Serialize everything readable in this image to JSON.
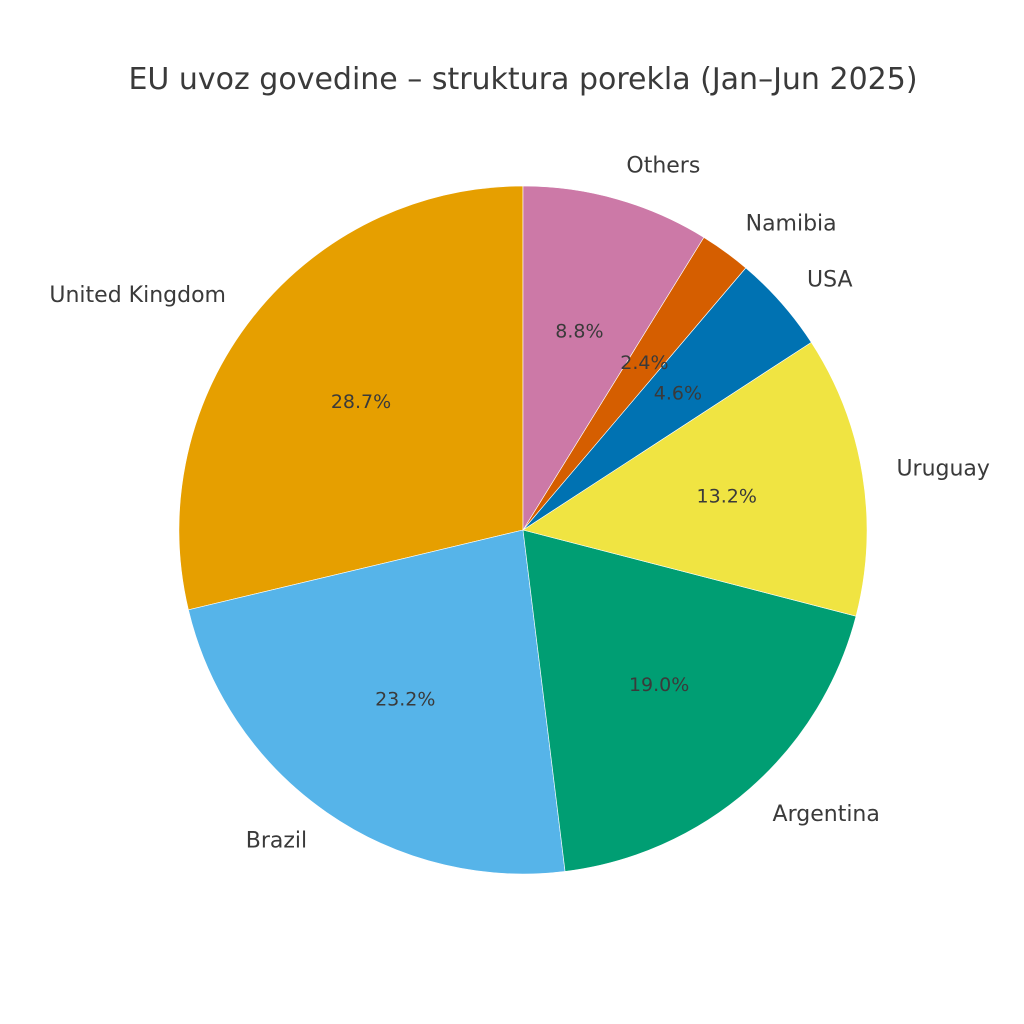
{
  "chart_data": {
    "type": "pie",
    "title": "EU uvoz govedine – struktura porekla (Jan–Jun 2025)",
    "start_angle_deg": 90,
    "direction": "counterclockwise",
    "slices": [
      {
        "label": "United Kingdom",
        "value": 28.7,
        "pct_label": "28.7%",
        "color": "#E69F00"
      },
      {
        "label": "Brazil",
        "value": 23.2,
        "pct_label": "23.2%",
        "color": "#56B4E9"
      },
      {
        "label": "Argentina",
        "value": 19.0,
        "pct_label": "19.0%",
        "color": "#009E73"
      },
      {
        "label": "Uruguay",
        "value": 13.2,
        "pct_label": "13.2%",
        "color": "#F0E442"
      },
      {
        "label": "USA",
        "value": 4.6,
        "pct_label": "4.6%",
        "color": "#0072B2"
      },
      {
        "label": "Namibia",
        "value": 2.4,
        "pct_label": "2.4%",
        "color": "#D55E00"
      },
      {
        "label": "Others",
        "value": 8.8,
        "pct_label": "8.8%",
        "color": "#CC79A7"
      }
    ]
  }
}
